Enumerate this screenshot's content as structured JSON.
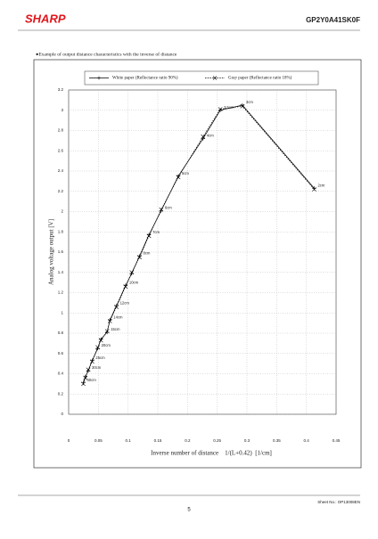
{
  "header": {
    "logo": "SHARP",
    "part_number": "GP2Y0A41SK0F"
  },
  "caption": "●Example of output distance characteristics with the inverse of distance",
  "chart_data": {
    "type": "line",
    "x_label": "Inverse number of distance    1/(L+0.42)  [1/cm]",
    "y_label": "Analog voltage output [V]",
    "x": [
      0.0247,
      0.0282,
      0.033,
      0.0396,
      0.0489,
      0.0543,
      0.0648,
      0.0694,
      0.0804,
      0.0958,
      0.1062,
      0.1192,
      0.1351,
      0.1558,
      0.1845,
      0.2262,
      0.2551,
      0.2924,
      0.4132
    ],
    "point_labels": [
      "40cm",
      null,
      "30cm",
      "25cm",
      "20cm",
      null,
      "15cm",
      "14cm",
      "12cm",
      "10cm",
      null,
      "8cm",
      "7cm",
      "6cm",
      "5cm",
      "4cm",
      "3.5cm",
      "3cm",
      "2cm"
    ],
    "series": [
      {
        "name": "White paper (Reflectance ratio 90%)",
        "color": "#000000",
        "line_style": "solid",
        "marker": "plus",
        "values": [
          0.31,
          0.37,
          0.43,
          0.53,
          0.65,
          0.74,
          0.81,
          0.93,
          1.07,
          1.27,
          1.39,
          1.56,
          1.77,
          2.01,
          2.35,
          2.72,
          3.0,
          3.05,
          2.23
        ]
      },
      {
        "name": "Gray paper (Reflectance ratio 18%)",
        "color": "#000000",
        "line_style": "dashed",
        "marker": "cross",
        "values": [
          0.3,
          0.36,
          0.44,
          0.52,
          0.66,
          0.73,
          0.82,
          0.92,
          1.06,
          1.26,
          1.4,
          1.55,
          1.76,
          2.02,
          2.34,
          2.74,
          3.01,
          3.04,
          2.22
        ]
      }
    ],
    "xlim": [
      0,
      0.45
    ],
    "xticks": [
      0,
      0.05,
      0.1,
      0.15,
      0.2,
      0.25,
      0.3,
      0.35,
      0.4,
      0.45
    ],
    "ylim": [
      0,
      3.2
    ],
    "yticks": [
      0,
      0.2,
      0.4,
      0.6,
      0.8,
      1,
      1.2,
      1.4,
      1.6,
      1.8,
      2,
      2.2,
      2.4,
      2.6,
      2.8,
      3,
      3.2
    ],
    "grid": true
  },
  "footer": {
    "sheet_no": "Sheet No.: OP13008EN",
    "page_number": "5"
  }
}
